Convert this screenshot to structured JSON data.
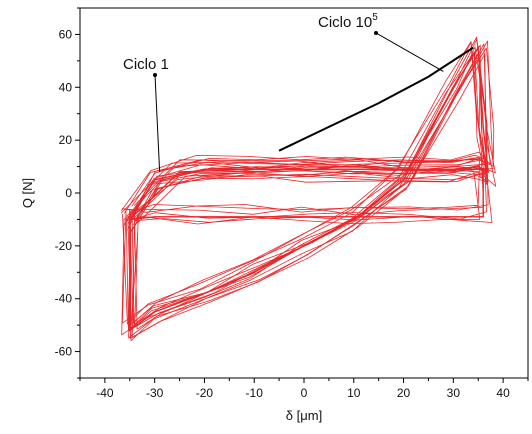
{
  "chart_data": {
    "type": "line",
    "title": "",
    "xlabel": "δ [μm]",
    "ylabel": "Q [N]",
    "xlim": [
      -45,
      45
    ],
    "ylim": [
      -70,
      70
    ],
    "x_ticks": [
      -40,
      -30,
      -20,
      -10,
      0,
      10,
      20,
      30,
      40
    ],
    "y_ticks": [
      -60,
      -40,
      -20,
      0,
      20,
      40,
      60
    ],
    "grid": false,
    "legend": "none",
    "colors": {
      "loops": "#e8262a",
      "highlight": "#000000",
      "axis": "#000000"
    },
    "series": [
      {
        "style": "outer hysteresis loop",
        "x": [
          -35,
          -30,
          -20,
          -10,
          0,
          10,
          20,
          30,
          35,
          37,
          36,
          35,
          30,
          20,
          10,
          0,
          -10,
          -20,
          -30,
          -35,
          -35
        ],
        "y": [
          -10,
          5,
          9,
          9,
          9,
          9,
          9,
          9,
          10,
          8,
          25,
          55,
          40,
          5,
          -10,
          -20,
          -30,
          -38,
          -45,
          -52,
          -10
        ]
      },
      {
        "style": "stick-slip loop (Ciclo 1 region)",
        "x": [
          -35,
          -25,
          -10,
          0,
          10,
          20,
          30,
          36,
          36,
          30,
          20,
          10,
          0,
          -10,
          -20,
          -30,
          -35
        ],
        "y": [
          -10,
          8,
          9,
          9,
          9,
          9,
          9,
          9,
          -9,
          -9,
          -9,
          -9,
          -9,
          -9,
          -9,
          -9,
          -10
        ]
      },
      {
        "style": "highlighted segment (Ciclo 10^5)",
        "x": [
          -5,
          5,
          15,
          25,
          34
        ],
        "y": [
          16,
          25,
          34,
          44,
          55
        ]
      }
    ],
    "annotations": [
      {
        "text": "Ciclo 1",
        "sup": "",
        "point_x": -29,
        "point_y": 8
      },
      {
        "text": "Ciclo 10",
        "sup": "5",
        "point_x": 28,
        "point_y": 46
      }
    ]
  }
}
